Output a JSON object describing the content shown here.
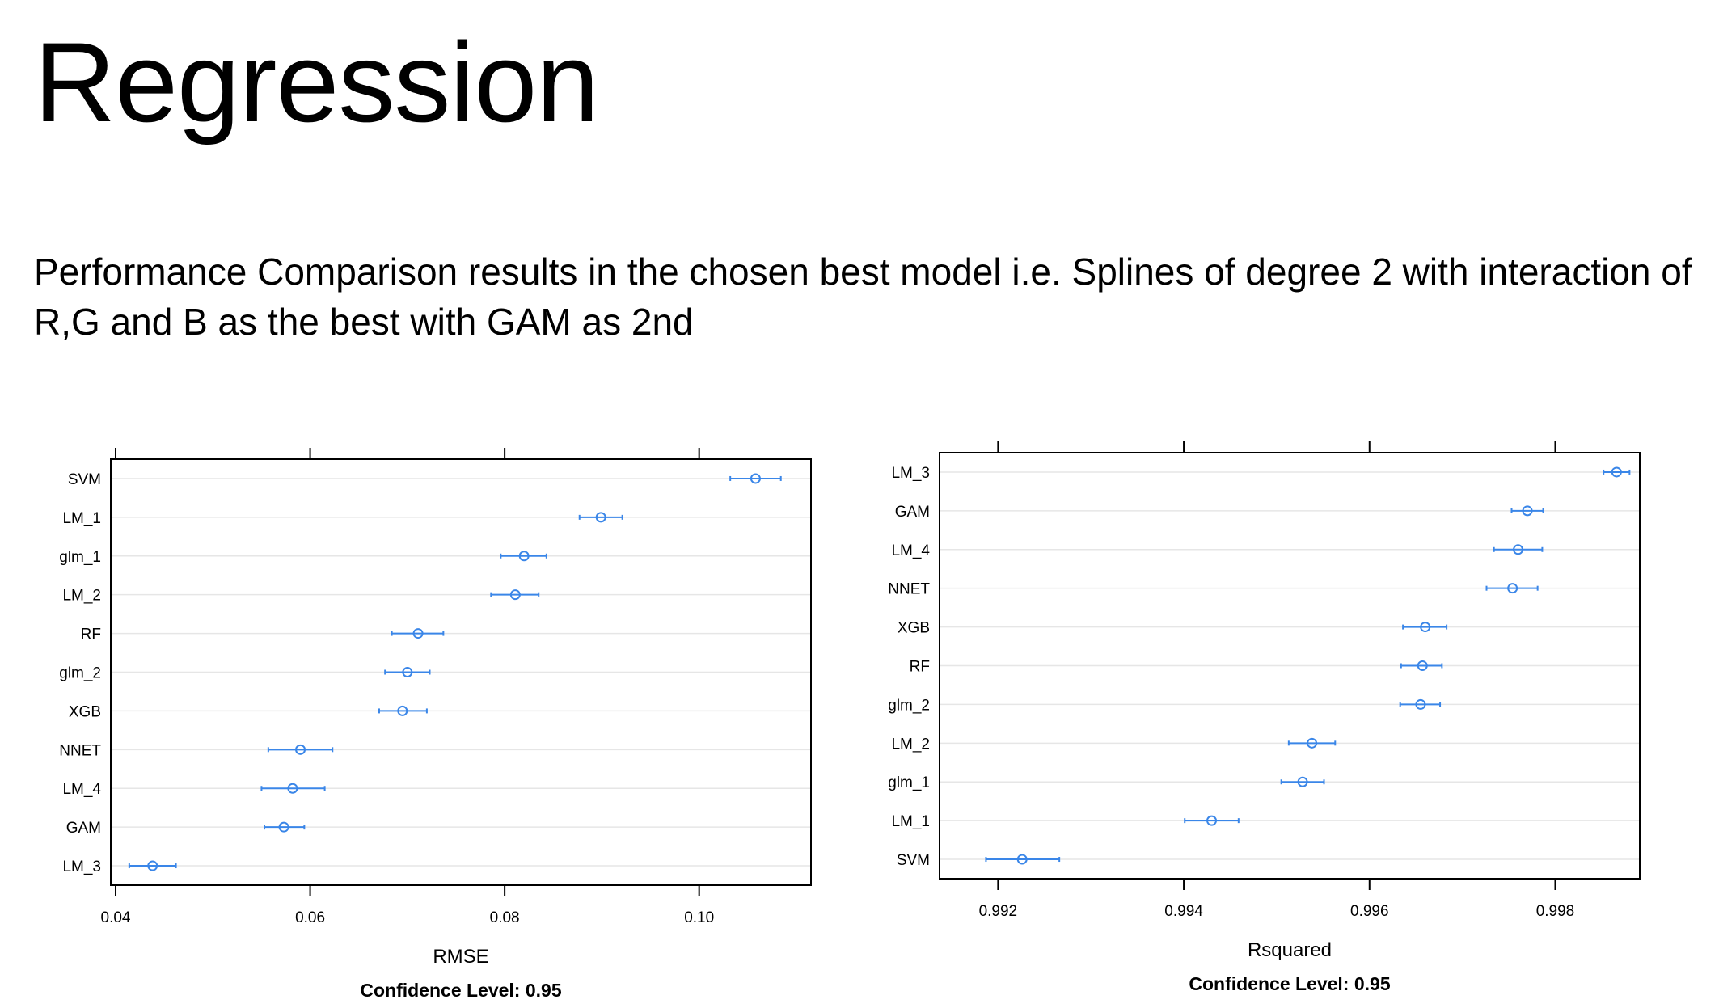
{
  "slide": {
    "title": "Regression",
    "subtitle": "Performance Comparison results in the chosen best model i.e. Splines of degree 2 with interaction of R,G and B as the best with GAM as 2nd"
  },
  "colors": {
    "point": "#3a86e8",
    "grid": "#e6e6e6",
    "axis": "#000000"
  },
  "chart_data": [
    {
      "type": "dotplot",
      "xlabel": "RMSE",
      "caption": "Confidence Level: 0.95",
      "xlim": [
        0.0395,
        0.1115
      ],
      "xticks": [
        0.04,
        0.06,
        0.08,
        0.1
      ],
      "xtick_labels": [
        "0.04",
        "0.06",
        "0.08",
        "0.10"
      ],
      "grid": true,
      "points": [
        {
          "model": "SVM",
          "value": 0.1058,
          "lower": 0.1032,
          "upper": 0.1084
        },
        {
          "model": "LM_1",
          "value": 0.0899,
          "lower": 0.0877,
          "upper": 0.0921
        },
        {
          "model": "glm_1",
          "value": 0.082,
          "lower": 0.0796,
          "upper": 0.0843
        },
        {
          "model": "LM_2",
          "value": 0.0811,
          "lower": 0.0786,
          "upper": 0.0835
        },
        {
          "model": "RF",
          "value": 0.0711,
          "lower": 0.0684,
          "upper": 0.0737
        },
        {
          "model": "glm_2",
          "value": 0.07,
          "lower": 0.0677,
          "upper": 0.0723
        },
        {
          "model": "XGB",
          "value": 0.0695,
          "lower": 0.0671,
          "upper": 0.072
        },
        {
          "model": "NNET",
          "value": 0.059,
          "lower": 0.0557,
          "upper": 0.0623
        },
        {
          "model": "LM_4",
          "value": 0.0582,
          "lower": 0.055,
          "upper": 0.0615
        },
        {
          "model": "GAM",
          "value": 0.0573,
          "lower": 0.0553,
          "upper": 0.0594
        },
        {
          "model": "LM_3",
          "value": 0.0438,
          "lower": 0.0414,
          "upper": 0.0462
        }
      ]
    },
    {
      "type": "dotplot",
      "xlabel": "Rsquared",
      "caption": "Confidence Level: 0.95",
      "xlim": [
        0.99137,
        0.99891
      ],
      "xticks": [
        0.992,
        0.994,
        0.996,
        0.998
      ],
      "xtick_labels": [
        "0.992",
        "0.994",
        "0.996",
        "0.998"
      ],
      "grid": true,
      "points": [
        {
          "model": "LM_3",
          "value": 0.99866,
          "lower": 0.99852,
          "upper": 0.9988
        },
        {
          "model": "GAM",
          "value": 0.9977,
          "lower": 0.99753,
          "upper": 0.99787
        },
        {
          "model": "LM_4",
          "value": 0.9976,
          "lower": 0.99734,
          "upper": 0.99786
        },
        {
          "model": "NNET",
          "value": 0.99754,
          "lower": 0.99726,
          "upper": 0.99781
        },
        {
          "model": "XGB",
          "value": 0.9966,
          "lower": 0.99636,
          "upper": 0.99683
        },
        {
          "model": "RF",
          "value": 0.99657,
          "lower": 0.99634,
          "upper": 0.99678
        },
        {
          "model": "glm_2",
          "value": 0.99655,
          "lower": 0.99633,
          "upper": 0.99676
        },
        {
          "model": "LM_2",
          "value": 0.99538,
          "lower": 0.99513,
          "upper": 0.99563
        },
        {
          "model": "glm_1",
          "value": 0.99528,
          "lower": 0.99505,
          "upper": 0.99551
        },
        {
          "model": "LM_1",
          "value": 0.9943,
          "lower": 0.99401,
          "upper": 0.99459
        },
        {
          "model": "SVM",
          "value": 0.99226,
          "lower": 0.99187,
          "upper": 0.99266
        }
      ]
    }
  ]
}
